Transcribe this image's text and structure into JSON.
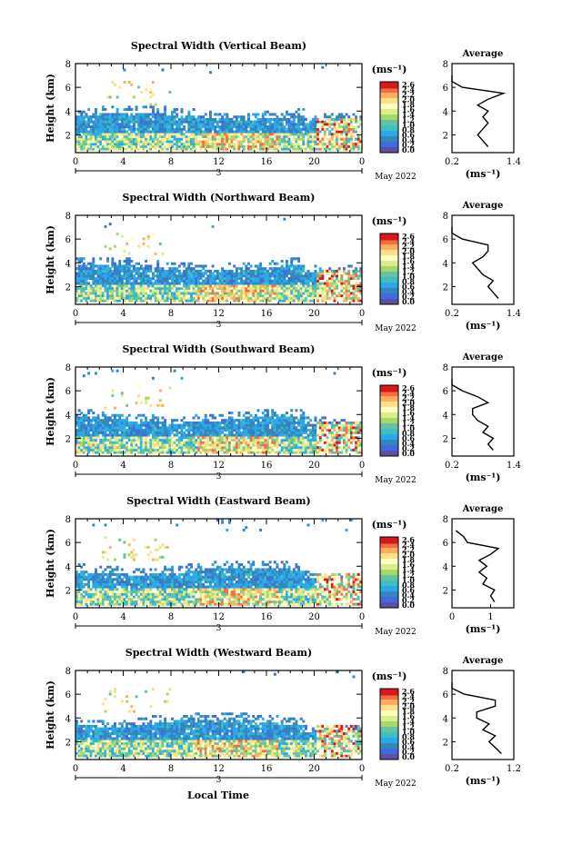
{
  "figure": {
    "x_axis_label": "Local Time",
    "colorbar_unit_label": "(ms⁻¹)",
    "average_unit_label": "(ms⁻¹)",
    "average_title": "Average",
    "date_day": "3",
    "date_label": "May 2022",
    "colorbar_ticks": [
      "2.6",
      "2.4",
      "2.2",
      "2.0",
      "1.8",
      "1.6",
      "1.4",
      "1.2",
      "1.0",
      "0.8",
      "0.6",
      "0.4",
      "0.2",
      "0.0"
    ],
    "colorbar_colors": [
      "#d7191c",
      "#f46d43",
      "#fdae61",
      "#fee08b",
      "#ffffbf",
      "#d9ef8b",
      "#a6d96a",
      "#66c2a5",
      "#3fbfbf",
      "#2aa8e8",
      "#3288bd",
      "#4169e1",
      "#5e4fa2",
      "#1a237e"
    ],
    "colorbar_range": [
      0.0,
      2.6
    ]
  },
  "chart_data": [
    {
      "type": "heatmap",
      "title": "Spectral Width (Vertical Beam)",
      "xlabel": "Local Time",
      "ylabel": "Height (km)",
      "x_ticks": [
        "0",
        "4",
        "8",
        "12",
        "16",
        "20",
        "0"
      ],
      "y_ticks": [
        "2",
        "4",
        "6",
        "8"
      ],
      "xlim": [
        0,
        24
      ],
      "ylim": [
        0.5,
        8
      ],
      "average_profile": {
        "title": "Average",
        "xlabel": "(ms⁻¹)",
        "x_ticks": [
          "0.2",
          "1.4"
        ],
        "xlim": [
          0.2,
          1.4
        ],
        "y_ticks": [
          "2",
          "4",
          "6",
          "8"
        ],
        "heights": [
          1.0,
          1.5,
          2.0,
          2.5,
          3.0,
          3.5,
          4.0,
          4.5,
          5.0,
          5.5,
          6.0,
          6.5,
          7.0
        ],
        "values": [
          0.9,
          0.8,
          0.7,
          0.8,
          0.9,
          0.8,
          0.9,
          0.7,
          0.9,
          1.2,
          0.4,
          0.2,
          0.2
        ]
      }
    },
    {
      "type": "heatmap",
      "title": "Spectral Width (Northward Beam)",
      "xlabel": "Local Time",
      "ylabel": "Height (km)",
      "x_ticks": [
        "0",
        "4",
        "8",
        "12",
        "16",
        "20",
        "0"
      ],
      "y_ticks": [
        "2",
        "4",
        "6",
        "8"
      ],
      "xlim": [
        0,
        24
      ],
      "ylim": [
        0.5,
        8
      ],
      "average_profile": {
        "title": "Average",
        "xlabel": "(ms⁻¹)",
        "x_ticks": [
          "0.2",
          "1.4"
        ],
        "xlim": [
          0.2,
          1.4
        ],
        "y_ticks": [
          "2",
          "4",
          "6",
          "8"
        ],
        "heights": [
          1.0,
          1.5,
          2.0,
          2.5,
          3.0,
          3.5,
          4.0,
          4.5,
          5.0,
          5.5,
          6.0,
          6.5,
          7.0
        ],
        "values": [
          1.1,
          1.0,
          0.9,
          1.0,
          0.8,
          0.7,
          0.6,
          0.8,
          0.9,
          0.9,
          0.4,
          0.2,
          0.2
        ]
      }
    },
    {
      "type": "heatmap",
      "title": "Spectral Width (Southward Beam)",
      "xlabel": "Local Time",
      "ylabel": "Height (km)",
      "x_ticks": [
        "0",
        "4",
        "8",
        "12",
        "16",
        "20",
        "0"
      ],
      "y_ticks": [
        "2",
        "4",
        "6",
        "8"
      ],
      "xlim": [
        0,
        24
      ],
      "ylim": [
        0.5,
        8
      ],
      "average_profile": {
        "title": "Average",
        "xlabel": "(ms⁻¹)",
        "x_ticks": [
          "0.2",
          "1.4"
        ],
        "xlim": [
          0.2,
          1.4
        ],
        "y_ticks": [
          "2",
          "4",
          "6",
          "8"
        ],
        "heights": [
          1.0,
          1.5,
          2.0,
          2.5,
          3.0,
          3.5,
          4.0,
          4.5,
          5.0,
          5.5,
          6.0,
          6.5,
          7.0
        ],
        "values": [
          1.0,
          0.9,
          1.0,
          0.8,
          0.9,
          0.7,
          0.6,
          0.6,
          0.9,
          0.7,
          0.4,
          0.2,
          0.2
        ]
      }
    },
    {
      "type": "heatmap",
      "title": "Spectral Width (Eastward Beam)",
      "xlabel": "Local Time",
      "ylabel": "Height (km)",
      "x_ticks": [
        "0",
        "4",
        "8",
        "12",
        "16",
        "20",
        "0"
      ],
      "y_ticks": [
        "2",
        "4",
        "6",
        "8"
      ],
      "xlim": [
        0,
        24
      ],
      "ylim": [
        0.5,
        8
      ],
      "average_profile": {
        "title": "Average",
        "xlabel": "(ms⁻¹)",
        "x_ticks": [
          "0",
          "1"
        ],
        "xlim": [
          0,
          1.6
        ],
        "y_ticks": [
          "2",
          "4",
          "6",
          "8"
        ],
        "heights": [
          1.0,
          1.5,
          2.0,
          2.5,
          3.0,
          3.5,
          4.0,
          4.5,
          5.0,
          5.5,
          6.0,
          6.5,
          7.0
        ],
        "values": [
          1.1,
          1.0,
          1.1,
          0.8,
          0.9,
          0.7,
          0.9,
          0.7,
          1.0,
          1.2,
          0.4,
          0.3,
          0.1
        ]
      }
    },
    {
      "type": "heatmap",
      "title": "Spectral Width (Westward Beam)",
      "xlabel": "Local Time",
      "ylabel": "Height (km)",
      "x_ticks": [
        "0",
        "4",
        "8",
        "12",
        "16",
        "20",
        "0"
      ],
      "y_ticks": [
        "2",
        "4",
        "6",
        "8"
      ],
      "xlim": [
        0,
        24
      ],
      "ylim": [
        0.5,
        8
      ],
      "average_profile": {
        "title": "Average",
        "xlabel": "(ms⁻¹)",
        "x_ticks": [
          "0.2",
          "1.2"
        ],
        "xlim": [
          0.2,
          1.2
        ],
        "y_ticks": [
          "2",
          "4",
          "6",
          "8"
        ],
        "heights": [
          1.0,
          1.5,
          2.0,
          2.5,
          3.0,
          3.5,
          4.0,
          4.5,
          5.0,
          5.5,
          6.0,
          6.5,
          7.0
        ],
        "values": [
          1.0,
          0.9,
          0.8,
          0.9,
          0.7,
          0.8,
          0.6,
          0.6,
          0.9,
          0.9,
          0.4,
          0.2,
          0.2
        ]
      }
    }
  ]
}
